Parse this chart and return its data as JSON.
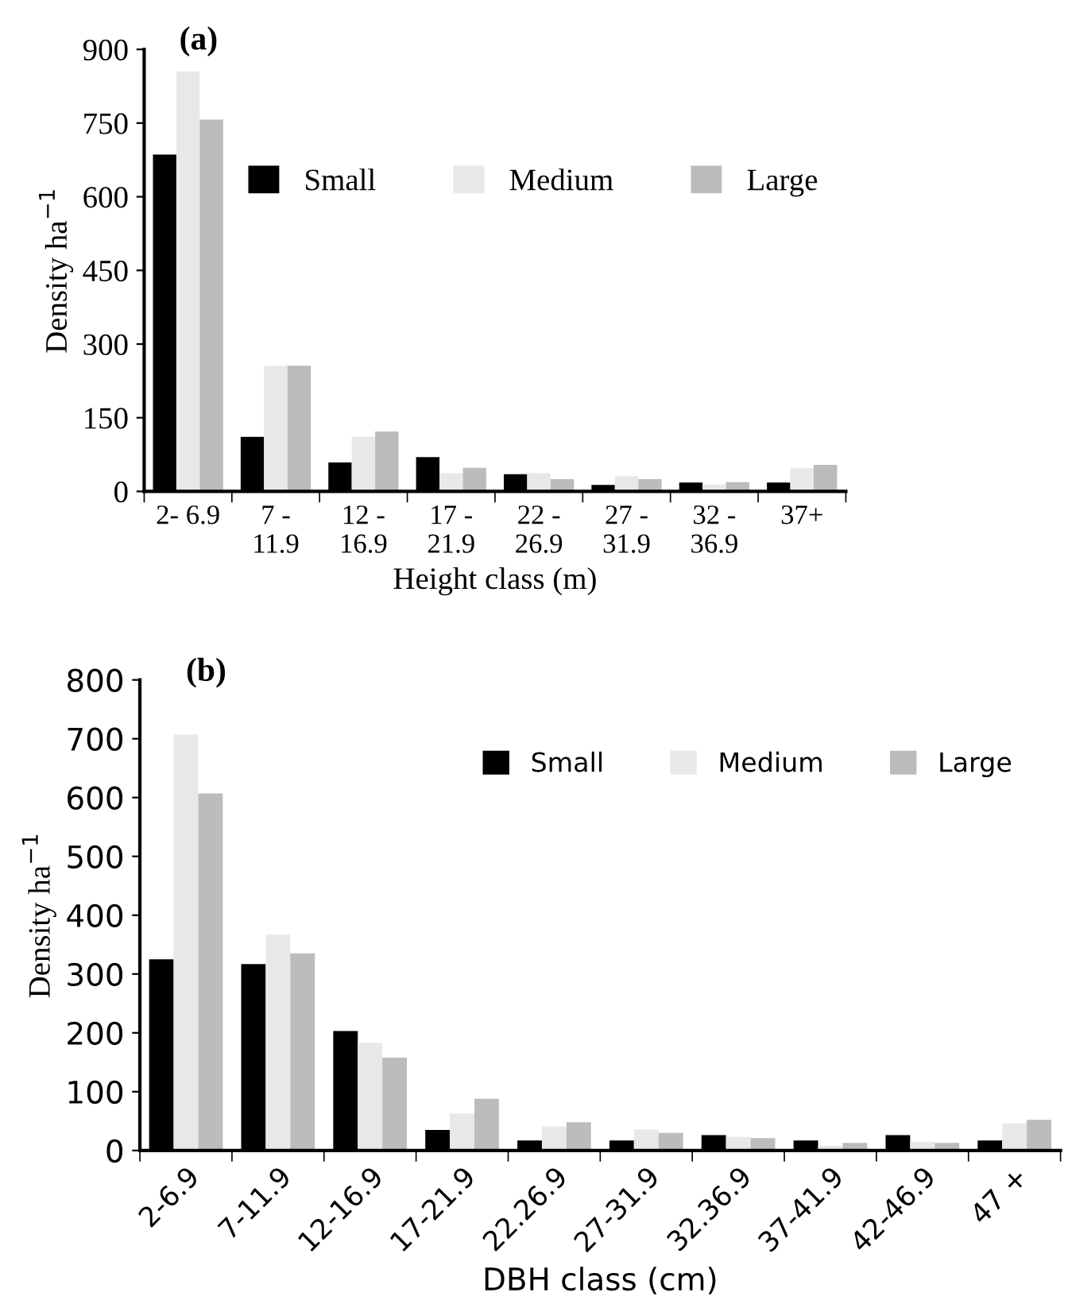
{
  "chart_data": [
    {
      "type": "bar",
      "title": "(a)",
      "xlabel": "Height class (m)",
      "ylabel": "Density ha$^{−1}$",
      "categories": [
        "2- 6.9",
        "7 -\n11.9",
        "12 -\n16.9",
        "17 -\n21.9",
        "22 -\n26.9",
        "27 -\n31.9",
        "32 -\n36.9",
        "37+"
      ],
      "series": [
        {
          "name": "Small",
          "color": "#000000",
          "values": [
            686,
            111,
            59,
            70,
            35,
            13,
            18,
            18
          ]
        },
        {
          "name": "Medium",
          "color": "#e8e8e8",
          "values": [
            855,
            256,
            111,
            37,
            37,
            31,
            14,
            47
          ]
        },
        {
          "name": "Large",
          "color": "#bcbcbc",
          "values": [
            757,
            256,
            122,
            48,
            25,
            25,
            19,
            54
          ]
        }
      ],
      "ylim": [
        0,
        900
      ],
      "yticks": [
        0,
        150,
        300,
        450,
        600,
        750,
        900
      ],
      "grid": false,
      "legend": "top right"
    },
    {
      "type": "bar",
      "title": "(b)",
      "xlabel": "DBH class (cm)",
      "ylabel": "Density ha$^{−1}$",
      "categories": [
        "2-6.9",
        "7-11.9",
        "12-16.9",
        "17-21.9",
        "22.26.9",
        "27-31.9",
        "32.36.9",
        "37-41.9",
        "42-46.9",
        "47 +"
      ],
      "series": [
        {
          "name": "Small",
          "color": "#000000",
          "values": [
            325,
            317,
            203,
            35,
            17,
            17,
            26,
            17,
            26,
            17
          ]
        },
        {
          "name": "Medium",
          "color": "#e8e8e8",
          "values": [
            707,
            367,
            183,
            63,
            41,
            36,
            23,
            8,
            15,
            46
          ]
        },
        {
          "name": "Large",
          "color": "#bcbcbc",
          "values": [
            607,
            335,
            158,
            88,
            48,
            30,
            21,
            13,
            13,
            52
          ]
        }
      ],
      "ylim": [
        0,
        800
      ],
      "yticks": [
        0,
        100,
        200,
        300,
        400,
        500,
        600,
        700,
        800
      ],
      "grid": false,
      "legend": "top"
    }
  ]
}
